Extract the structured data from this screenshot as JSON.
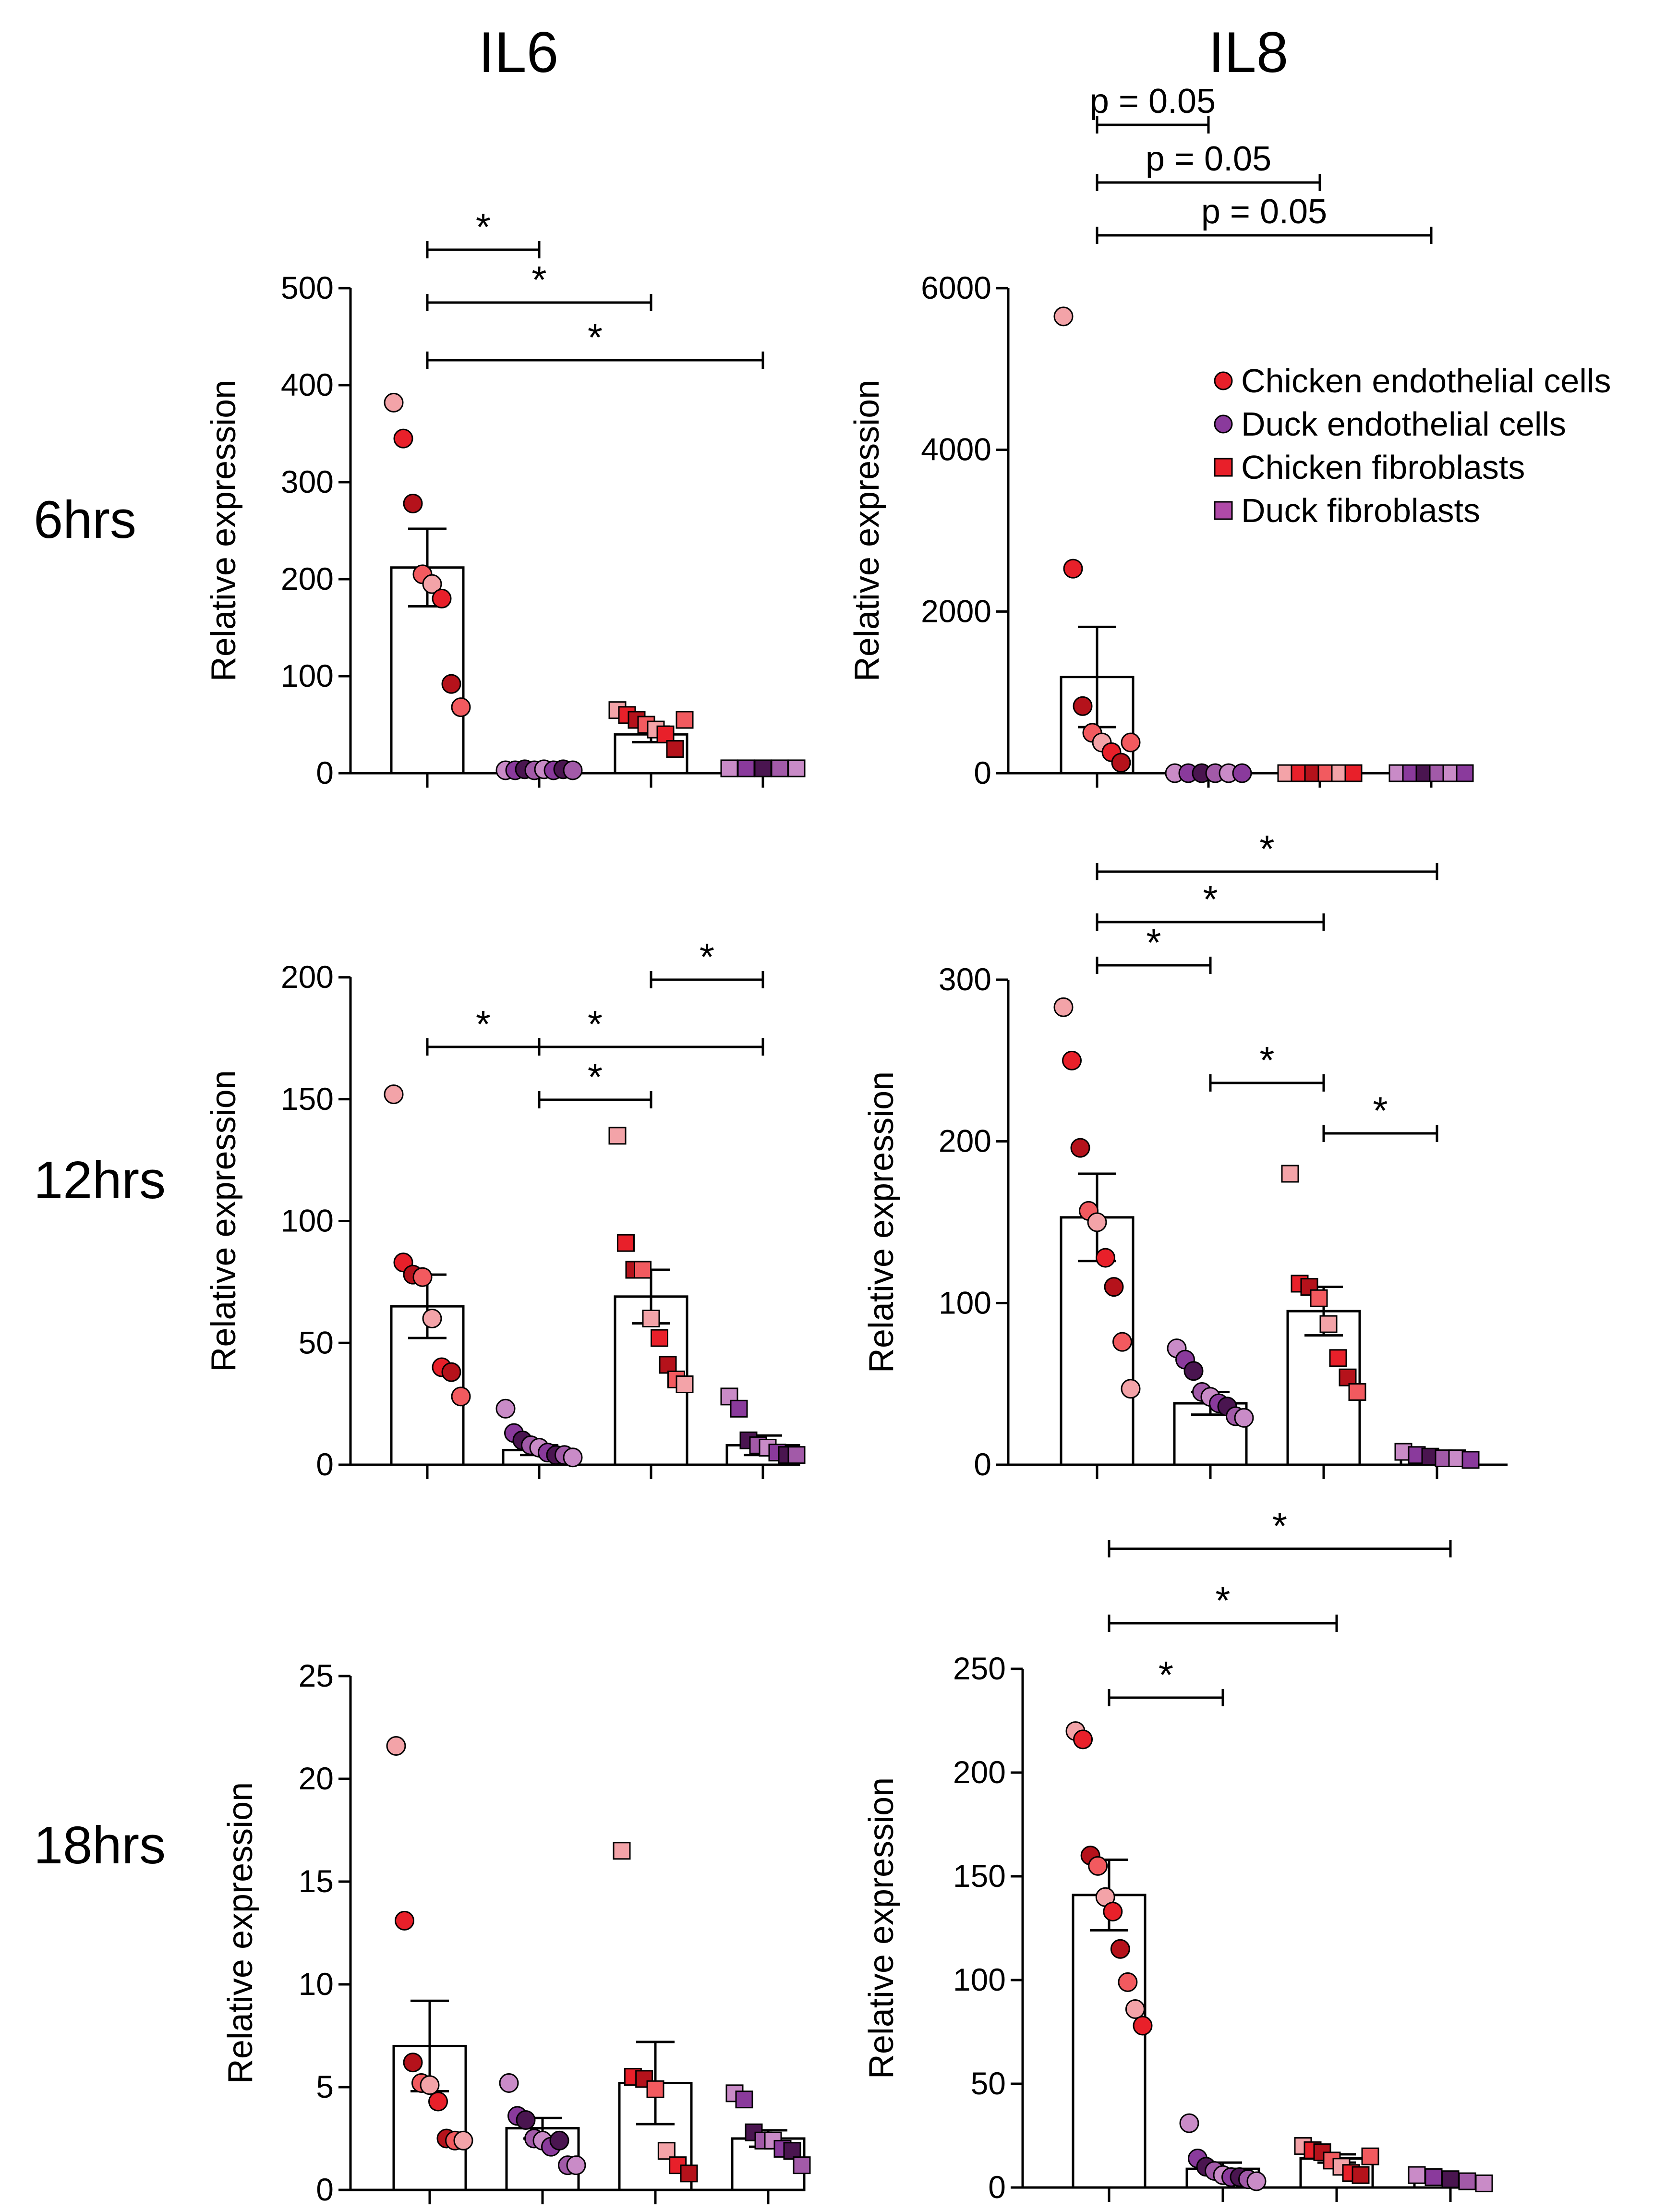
{
  "figure": {
    "column_titles": [
      "IL6",
      "IL8"
    ],
    "row_titles": [
      "6hrs",
      "12hrs",
      "18hrs"
    ]
  },
  "legend": {
    "items": [
      {
        "label": "Chicken endothelial cells",
        "shape": "circle",
        "color": "#e8202a"
      },
      {
        "label": "Duck endothelial cells",
        "shape": "circle",
        "color": "#8a3a9c"
      },
      {
        "label": "Chicken fibroblasts",
        "shape": "square",
        "color": "#e8202a"
      },
      {
        "label": "Duck fibroblasts",
        "shape": "square",
        "color": "#b04aa8"
      }
    ]
  },
  "colors": {
    "chicken": [
      "#f3a3a8",
      "#e8202a",
      "#b5121b",
      "#f25a5f"
    ],
    "duck": [
      "#c98bc7",
      "#8a3a9c",
      "#4a1550",
      "#a25aa8"
    ]
  },
  "chart_data": [
    {
      "type": "bar",
      "title": "IL6",
      "row": "6hrs",
      "ylabel": "Relative expression",
      "ylim": [
        0,
        500
      ],
      "yticks": [
        0,
        100,
        200,
        300,
        400,
        500
      ],
      "categories": [
        "Chicken endothelial cells",
        "Duck endothelial cells",
        "Chicken fibroblasts",
        "Duck fibroblasts"
      ],
      "means": [
        212,
        2,
        40,
        5
      ],
      "sem": [
        40,
        1,
        8,
        1
      ],
      "points": [
        [
          382,
          345,
          278,
          205,
          195,
          180,
          92,
          68
        ],
        [
          3,
          3,
          4,
          3,
          4,
          3,
          4,
          3
        ],
        [
          65,
          60,
          55,
          50,
          45,
          40,
          25,
          55
        ],
        [
          5,
          5,
          5,
          5,
          5
        ]
      ],
      "significance": [
        {
          "from": 0,
          "to": 1,
          "label": "*"
        },
        {
          "from": 0,
          "to": 2,
          "label": "*"
        },
        {
          "from": 0,
          "to": 3,
          "label": "*"
        }
      ]
    },
    {
      "type": "bar",
      "title": "IL8",
      "row": "6hrs",
      "ylabel": "Relative expression",
      "ylim": [
        0,
        6000
      ],
      "yticks": [
        0,
        2000,
        4000,
        6000
      ],
      "categories": [
        "Chicken endothelial cells",
        "Duck endothelial cells",
        "Chicken fibroblasts",
        "Duck fibroblasts"
      ],
      "means": [
        1190,
        0,
        0,
        0
      ],
      "sem": [
        620,
        0,
        0,
        0
      ],
      "points": [
        [
          5650,
          2530,
          830,
          500,
          380,
          260,
          130,
          380
        ],
        [
          0,
          0,
          0,
          0,
          0,
          0
        ],
        [
          0,
          0,
          0,
          0,
          0,
          0
        ],
        [
          0,
          0,
          0,
          0,
          0,
          0
        ]
      ],
      "significance": [
        {
          "from": 0,
          "to": 1,
          "label": "p = 0.05"
        },
        {
          "from": 0,
          "to": 2,
          "label": "p = 0.05"
        },
        {
          "from": 0,
          "to": 3,
          "label": "p = 0.05"
        }
      ]
    },
    {
      "type": "bar",
      "title": "IL6",
      "row": "12hrs",
      "ylabel": "Relative expression",
      "ylim": [
        0,
        200
      ],
      "yticks": [
        0,
        50,
        100,
        150,
        200
      ],
      "categories": [
        "Chicken endothelial cells",
        "Duck endothelial cells",
        "Chicken fibroblasts",
        "Duck fibroblasts"
      ],
      "means": [
        65,
        6,
        69,
        8
      ],
      "sem": [
        13,
        2,
        11,
        4
      ],
      "points": [
        [
          152,
          83,
          78,
          77,
          60,
          40,
          38,
          28
        ],
        [
          23,
          13,
          10,
          8,
          7,
          5,
          4,
          4,
          3
        ],
        [
          135,
          91,
          80,
          80,
          60,
          52,
          41,
          35,
          33
        ],
        [
          28,
          23,
          10,
          8,
          7,
          5,
          4,
          4
        ]
      ],
      "significance": [
        {
          "from": 0,
          "to": 1,
          "label": "*"
        },
        {
          "from": 0,
          "to": 3,
          "label": "*"
        },
        {
          "from": 1,
          "to": 2,
          "label": "*"
        },
        {
          "from": 2,
          "to": 3,
          "label": "*"
        }
      ]
    },
    {
      "type": "bar",
      "title": "IL8",
      "row": "12hrs",
      "ylabel": "Relative expression",
      "ylim": [
        0,
        300
      ],
      "yticks": [
        0,
        100,
        200,
        300
      ],
      "categories": [
        "Chicken endothelial cells",
        "Duck endothelial cells",
        "Chicken fibroblasts",
        "Duck fibroblasts"
      ],
      "means": [
        153,
        38,
        95,
        5
      ],
      "sem": [
        27,
        7,
        15,
        2
      ],
      "points": [
        [
          283,
          250,
          196,
          157,
          150,
          128,
          110,
          76,
          47
        ],
        [
          72,
          65,
          58,
          45,
          42,
          38,
          36,
          30,
          29
        ],
        [
          180,
          112,
          110,
          103,
          87,
          66,
          54,
          45
        ],
        [
          8,
          6,
          5,
          4,
          4,
          3
        ]
      ],
      "significance": [
        {
          "from": 0,
          "to": 1,
          "label": "*"
        },
        {
          "from": 0,
          "to": 2,
          "label": "*"
        },
        {
          "from": 0,
          "to": 3,
          "label": "*"
        },
        {
          "from": 1,
          "to": 2,
          "label": "*"
        },
        {
          "from": 2,
          "to": 3,
          "label": "*"
        }
      ]
    },
    {
      "type": "bar",
      "title": "IL6",
      "row": "18hrs",
      "ylabel": "Relative expression",
      "ylim": [
        0,
        25
      ],
      "yticks": [
        0,
        5,
        10,
        15,
        20,
        25
      ],
      "categories": [
        "Chicken endothelial cells",
        "Duck endothelial cells",
        "Chicken fibroblasts",
        "Duck fibroblasts"
      ],
      "means": [
        7,
        3,
        5.2,
        2.5
      ],
      "sem": [
        2.2,
        0.5,
        2.0,
        0.4
      ],
      "points": [
        [
          21.6,
          13.1,
          6.2,
          5.2,
          5.1,
          4.3,
          2.5,
          2.4,
          2.4
        ],
        [
          5.2,
          3.6,
          3.4,
          2.5,
          2.4,
          2.1,
          2.4,
          1.2,
          1.2
        ],
        [
          16.5,
          5.5,
          5.4,
          4.9,
          1.9,
          1.2,
          0.8
        ],
        [
          4.7,
          4.4,
          2.8,
          2.4,
          2.4,
          2.0,
          1.9,
          1.2
        ]
      ],
      "significance": []
    },
    {
      "type": "bar",
      "title": "IL8",
      "row": "18hrs",
      "ylabel": "Relative expression",
      "ylim": [
        0,
        250
      ],
      "yticks": [
        0,
        50,
        100,
        150,
        200,
        250
      ],
      "categories": [
        "Chicken endothelial cells",
        "Duck endothelial cells",
        "Chicken fibroblasts",
        "Duck fibroblasts"
      ],
      "means": [
        141,
        9,
        14,
        5
      ],
      "sem": [
        17,
        3,
        2,
        1
      ],
      "points": [
        [
          220,
          216,
          160,
          155,
          140,
          133,
          115,
          99,
          86,
          78
        ],
        [
          31,
          14,
          10,
          8,
          6,
          5,
          5,
          4,
          3
        ],
        [
          20,
          18,
          17,
          13,
          10,
          7,
          6,
          15
        ],
        [
          6,
          5,
          4,
          3,
          2
        ]
      ],
      "significance": [
        {
          "from": 0,
          "to": 1,
          "label": "*"
        },
        {
          "from": 0,
          "to": 2,
          "label": "*"
        },
        {
          "from": 0,
          "to": 3,
          "label": "*"
        }
      ]
    }
  ]
}
